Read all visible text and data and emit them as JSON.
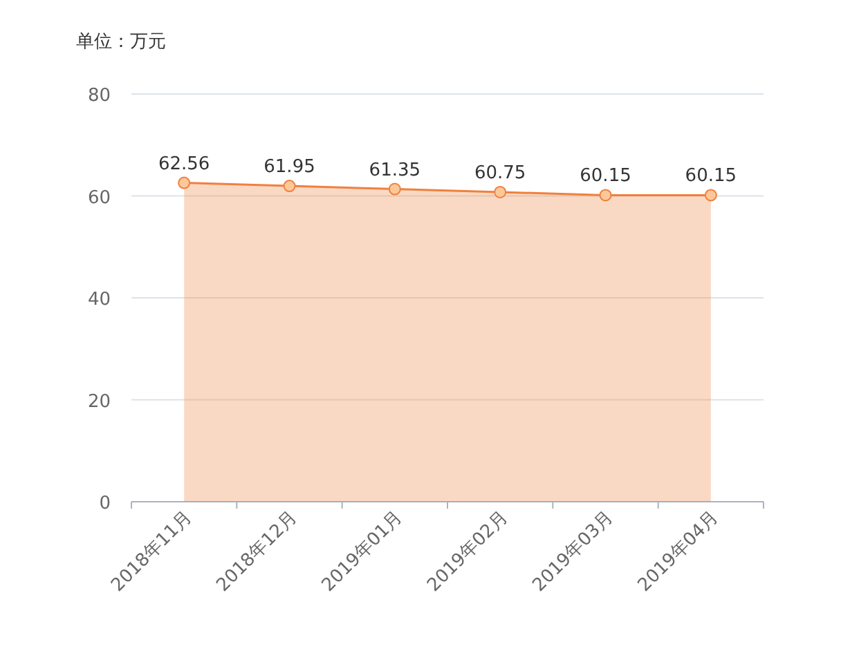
{
  "chart_data": {
    "type": "area",
    "ylabel": "单位：万元",
    "categories": [
      "2018年11月",
      "2018年12月",
      "2019年01月",
      "2019年02月",
      "2019年03月",
      "2019年04月"
    ],
    "series": [
      {
        "color": "#f0803c",
        "values": [
          62.56,
          61.95,
          61.35,
          60.75,
          60.15,
          60.15
        ]
      }
    ],
    "ylim": [
      0,
      80
    ],
    "yticks": [
      0,
      20,
      40,
      60,
      80
    ],
    "grid": "y",
    "marker": "circle",
    "data_labels": true
  }
}
